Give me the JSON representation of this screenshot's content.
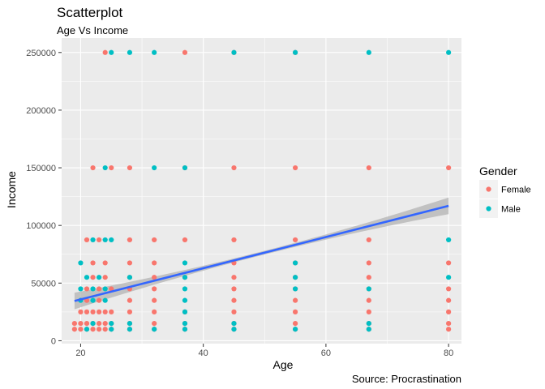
{
  "chart_data": {
    "type": "scatter",
    "title": "Scatterplot",
    "subtitle": "Age Vs Income",
    "caption": "Source: Procrastination",
    "xlabel": "Age",
    "ylabel": "Income",
    "xlim": [
      16.9,
      82.1
    ],
    "ylim": [
      -2500,
      262500
    ],
    "x_ticks": [
      20,
      40,
      60,
      80
    ],
    "y_ticks": [
      0,
      50000,
      100000,
      150000,
      200000,
      250000
    ],
    "legend": {
      "title": "Gender",
      "placement": "right",
      "entries": [
        {
          "label": "Female",
          "color": "#F8766D"
        },
        {
          "label": "Male",
          "color": "#00BFC4"
        }
      ]
    },
    "grid": true,
    "colors": {
      "panel": "#EBEBEB",
      "grid": "#FFFFFF",
      "trend": "#3366FF",
      "band": "#B3B3B3"
    },
    "trend_line": {
      "x": [
        19,
        80
      ],
      "y": [
        34500,
        117000
      ],
      "se_band": true
    },
    "series": [
      {
        "name": "Female",
        "color": "#F8766D",
        "points": [
          [
            24,
            250000
          ],
          [
            37,
            250000
          ],
          [
            45,
            250000
          ],
          [
            55,
            250000
          ],
          [
            22,
            150000
          ],
          [
            25,
            150000
          ],
          [
            28,
            150000
          ],
          [
            37,
            150000
          ],
          [
            45,
            150000
          ],
          [
            55,
            150000
          ],
          [
            67,
            150000
          ],
          [
            80,
            150000
          ],
          [
            21,
            87500
          ],
          [
            23,
            87500
          ],
          [
            28,
            87500
          ],
          [
            32,
            87500
          ],
          [
            37,
            87500
          ],
          [
            45,
            87500
          ],
          [
            55,
            87500
          ],
          [
            67,
            87500
          ],
          [
            22,
            67500
          ],
          [
            24,
            67500
          ],
          [
            28,
            67500
          ],
          [
            32,
            67500
          ],
          [
            45,
            67500
          ],
          [
            55,
            67500
          ],
          [
            67,
            67500
          ],
          [
            80,
            67500
          ],
          [
            22,
            55000
          ],
          [
            24,
            55000
          ],
          [
            28,
            55000
          ],
          [
            32,
            55000
          ],
          [
            37,
            55000
          ],
          [
            45,
            55000
          ],
          [
            55,
            55000
          ],
          [
            67,
            55000
          ],
          [
            21,
            45000
          ],
          [
            23,
            45000
          ],
          [
            25,
            45000
          ],
          [
            28,
            45000
          ],
          [
            32,
            45000
          ],
          [
            45,
            45000
          ],
          [
            55,
            45000
          ],
          [
            67,
            45000
          ],
          [
            80,
            45000
          ],
          [
            21,
            35000
          ],
          [
            23,
            35000
          ],
          [
            28,
            35000
          ],
          [
            32,
            35000
          ],
          [
            45,
            35000
          ],
          [
            55,
            35000
          ],
          [
            67,
            35000
          ],
          [
            80,
            35000
          ],
          [
            20,
            25000
          ],
          [
            21,
            25000
          ],
          [
            22,
            25000
          ],
          [
            23,
            25000
          ],
          [
            24,
            25000
          ],
          [
            25,
            25000
          ],
          [
            28,
            25000
          ],
          [
            32,
            25000
          ],
          [
            37,
            25000
          ],
          [
            45,
            25000
          ],
          [
            55,
            25000
          ],
          [
            67,
            25000
          ],
          [
            80,
            25000
          ],
          [
            19,
            15000
          ],
          [
            20,
            15000
          ],
          [
            21,
            15000
          ],
          [
            22,
            15000
          ],
          [
            23,
            15000
          ],
          [
            24,
            15000
          ],
          [
            25,
            15000
          ],
          [
            28,
            15000
          ],
          [
            32,
            15000
          ],
          [
            37,
            15000
          ],
          [
            45,
            15000
          ],
          [
            55,
            15000
          ],
          [
            67,
            15000
          ],
          [
            80,
            15000
          ],
          [
            19,
            10000
          ],
          [
            20,
            10000
          ],
          [
            21,
            10000
          ],
          [
            22,
            10000
          ],
          [
            23,
            10000
          ],
          [
            24,
            10000
          ],
          [
            25,
            10000
          ],
          [
            28,
            10000
          ],
          [
            32,
            10000
          ],
          [
            37,
            10000
          ],
          [
            45,
            10000
          ],
          [
            55,
            10000
          ],
          [
            67,
            10000
          ],
          [
            80,
            10000
          ]
        ]
      },
      {
        "name": "Male",
        "color": "#00BFC4",
        "points": [
          [
            25,
            250000
          ],
          [
            28,
            250000
          ],
          [
            32,
            250000
          ],
          [
            45,
            250000
          ],
          [
            55,
            250000
          ],
          [
            67,
            250000
          ],
          [
            80,
            250000
          ],
          [
            24,
            150000
          ],
          [
            32,
            150000
          ],
          [
            37,
            150000
          ],
          [
            22,
            87500
          ],
          [
            24,
            87500
          ],
          [
            25,
            87500
          ],
          [
            80,
            87500
          ],
          [
            20,
            67500
          ],
          [
            37,
            67500
          ],
          [
            55,
            67500
          ],
          [
            21,
            55000
          ],
          [
            23,
            55000
          ],
          [
            28,
            55000
          ],
          [
            37,
            55000
          ],
          [
            55,
            55000
          ],
          [
            80,
            55000
          ],
          [
            20,
            45000
          ],
          [
            22,
            45000
          ],
          [
            24,
            45000
          ],
          [
            37,
            45000
          ],
          [
            55,
            45000
          ],
          [
            67,
            45000
          ],
          [
            20,
            35000
          ],
          [
            22,
            35000
          ],
          [
            24,
            35000
          ],
          [
            37,
            35000
          ],
          [
            37,
            25000
          ],
          [
            22,
            15000
          ],
          [
            25,
            15000
          ],
          [
            28,
            15000
          ],
          [
            37,
            15000
          ],
          [
            45,
            15000
          ],
          [
            67,
            15000
          ],
          [
            21,
            10000
          ],
          [
            25,
            10000
          ],
          [
            28,
            10000
          ],
          [
            32,
            10000
          ],
          [
            37,
            10000
          ],
          [
            45,
            10000
          ],
          [
            55,
            10000
          ],
          [
            67,
            10000
          ]
        ]
      }
    ]
  }
}
